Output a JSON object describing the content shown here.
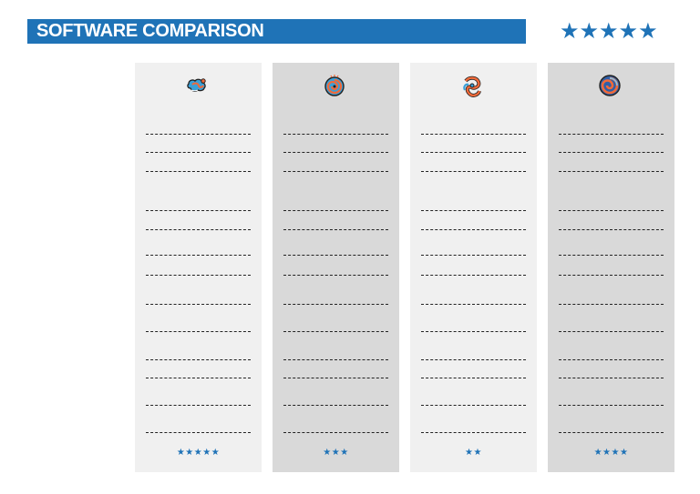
{
  "header": {
    "title": "SOFTWARE COMPARISON",
    "stars": "★★★★★"
  },
  "columns": [
    {
      "logo": "cloud-swirl-logo-icon",
      "rating": "★★★★★",
      "stars": 5
    },
    {
      "logo": "spiral-vortex-logo-icon",
      "rating": "★★★",
      "stars": 3
    },
    {
      "logo": "knot-loop-logo-icon",
      "rating": "★★",
      "stars": 2
    },
    {
      "logo": "swirl-orb-logo-icon",
      "rating": "★★★★",
      "stars": 4
    }
  ],
  "colors": {
    "accent": "#1f73b7",
    "column_light": "#f0f0f0",
    "column_dark": "#d9d9d9"
  }
}
